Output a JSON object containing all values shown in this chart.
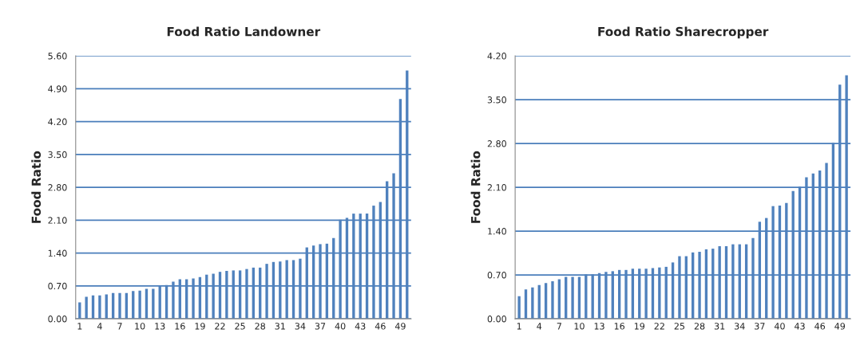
{
  "chart_data": [
    {
      "type": "bar",
      "title": "Food Ratio Landowner",
      "ylabel": "Food Ratio",
      "categories": [
        "1",
        null,
        null,
        "4",
        null,
        null,
        "7",
        null,
        null,
        "10",
        null,
        null,
        "13",
        null,
        null,
        "16",
        null,
        null,
        "19",
        null,
        null,
        "22",
        null,
        null,
        "25",
        null,
        null,
        "28",
        null,
        null,
        "31",
        null,
        null,
        "34",
        null,
        null,
        "37",
        null,
        null,
        "40",
        null,
        null,
        "43",
        null,
        null,
        "46",
        null,
        null,
        "49",
        null
      ],
      "values": [
        0.35,
        0.47,
        0.5,
        0.5,
        0.52,
        0.55,
        0.55,
        0.55,
        0.59,
        0.6,
        0.64,
        0.64,
        0.71,
        0.72,
        0.79,
        0.84,
        0.84,
        0.86,
        0.89,
        0.94,
        0.96,
        1.0,
        1.02,
        1.03,
        1.03,
        1.06,
        1.09,
        1.09,
        1.17,
        1.21,
        1.22,
        1.25,
        1.25,
        1.28,
        1.52,
        1.56,
        1.59,
        1.6,
        1.72,
        2.11,
        2.15,
        2.24,
        2.24,
        2.24,
        2.41,
        2.49,
        2.93,
        3.1,
        4.68,
        5.29
      ],
      "color": "#4f81bd",
      "ylim": [
        0,
        5.6
      ],
      "yticks": [
        {
          "value": 0,
          "label": "0.00"
        },
        {
          "value": 0.7,
          "label": "0.70"
        },
        {
          "value": 1.4,
          "label": "1.40"
        },
        {
          "value": 2.1,
          "label": "2.10"
        },
        {
          "value": 2.8,
          "label": "2.80"
        },
        {
          "value": 3.5,
          "label": "3.50"
        },
        {
          "value": 4.2,
          "label": "4.20"
        },
        {
          "value": 4.9,
          "label": "4.90"
        },
        {
          "value": 5.6,
          "label": "5.60"
        }
      ],
      "grid": "y"
    },
    {
      "type": "bar",
      "title": "Food Ratio Sharecropper",
      "ylabel": "Food Ratio",
      "categories": [
        "1",
        null,
        null,
        "4",
        null,
        null,
        "7",
        null,
        null,
        "10",
        null,
        null,
        "13",
        null,
        null,
        "16",
        null,
        null,
        "19",
        null,
        null,
        "22",
        null,
        null,
        "25",
        null,
        null,
        "28",
        null,
        null,
        "31",
        null,
        null,
        "34",
        null,
        null,
        "37",
        null,
        null,
        "40",
        null,
        null,
        "43",
        null,
        null,
        "46",
        null,
        null,
        "49",
        null
      ],
      "values": [
        0.36,
        0.47,
        0.5,
        0.54,
        0.57,
        0.6,
        0.63,
        0.67,
        0.67,
        0.67,
        0.71,
        0.71,
        0.73,
        0.75,
        0.76,
        0.78,
        0.78,
        0.8,
        0.8,
        0.8,
        0.81,
        0.82,
        0.83,
        0.9,
        1.0,
        1.0,
        1.06,
        1.07,
        1.11,
        1.12,
        1.16,
        1.16,
        1.19,
        1.19,
        1.19,
        1.29,
        1.55,
        1.61,
        1.8,
        1.81,
        1.85,
        2.04,
        2.11,
        2.26,
        2.32,
        2.37,
        2.49,
        2.81,
        3.74,
        3.89
      ],
      "color": "#4f81bd",
      "ylim": [
        0,
        4.2
      ],
      "yticks": [
        {
          "value": 0,
          "label": "0.00"
        },
        {
          "value": 0.7,
          "label": "0.70"
        },
        {
          "value": 1.4,
          "label": "1.40"
        },
        {
          "value": 2.1,
          "label": "2.10"
        },
        {
          "value": 2.8,
          "label": "2.80"
        },
        {
          "value": 3.5,
          "label": "3.50"
        },
        {
          "value": 4.2,
          "label": "4.20"
        }
      ],
      "grid": "y"
    }
  ]
}
